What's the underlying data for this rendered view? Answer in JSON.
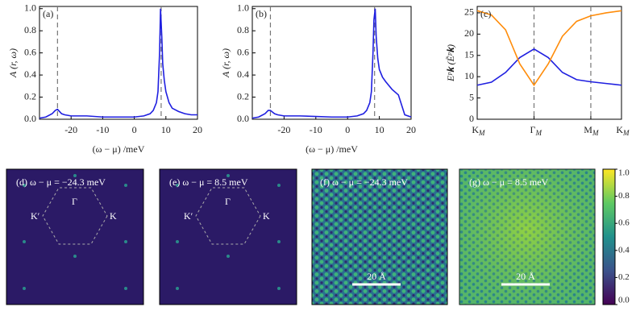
{
  "chart_data": [
    {
      "type": "line",
      "panel": "(a)",
      "xlabel": "(ω − μ) /meV",
      "ylabel": "A (r, ω)",
      "x": [
        -30,
        -28,
        -26,
        -25,
        -24.3,
        -23,
        -22,
        -20,
        -15,
        -10,
        -5,
        0,
        3,
        5,
        6,
        7,
        7.5,
        8,
        8.3,
        8.7,
        9,
        9.5,
        10,
        11,
        12,
        14,
        16,
        18,
        20
      ],
      "series": [
        {
          "color": "#1f1fe0",
          "values": [
            0.01,
            0.02,
            0.05,
            0.08,
            0.09,
            0.05,
            0.04,
            0.03,
            0.03,
            0.02,
            0.02,
            0.02,
            0.03,
            0.05,
            0.08,
            0.15,
            0.25,
            0.6,
            1.0,
            0.75,
            0.5,
            0.35,
            0.25,
            0.15,
            0.1,
            0.07,
            0.05,
            0.04,
            0.04
          ]
        }
      ],
      "xlim": [
        -30,
        20
      ],
      "xticks": [
        -20,
        -10,
        0,
        10,
        20
      ],
      "ylim": [
        0,
        1.02
      ],
      "yticks": [
        {
          "value": 0,
          "label": "0.0"
        },
        0.2,
        0.4,
        0.6,
        0.8,
        {
          "value": 1,
          "label": "1.0"
        }
      ],
      "vlines": [
        -24.3,
        8.5
      ]
    },
    {
      "type": "line",
      "panel": "(b)",
      "xlabel": "(ω − μ) /meV",
      "ylabel": "A (r, ω)",
      "x": [
        -30,
        -28,
        -26,
        -25,
        -24.3,
        -23,
        -22,
        -20,
        -15,
        -10,
        -5,
        0,
        3,
        5,
        6,
        7,
        7.5,
        8,
        8.3,
        8.7,
        9,
        9.5,
        10,
        11,
        12,
        14,
        16,
        18,
        20
      ],
      "series": [
        {
          "color": "#1f1fe0",
          "values": [
            0.01,
            0.02,
            0.05,
            0.08,
            0.08,
            0.05,
            0.04,
            0.03,
            0.03,
            0.025,
            0.02,
            0.02,
            0.03,
            0.05,
            0.08,
            0.15,
            0.25,
            0.6,
            0.9,
            1.0,
            0.75,
            0.55,
            0.45,
            0.38,
            0.34,
            0.27,
            0.22,
            0.04,
            0.02
          ]
        }
      ],
      "xlim": [
        -30,
        20
      ],
      "xticks": [
        -20,
        -10,
        0,
        10,
        20
      ],
      "ylim": [
        0,
        1.02
      ],
      "yticks": [
        {
          "value": 0,
          "label": "0.0"
        },
        0.2,
        0.4,
        0.6,
        0.8,
        {
          "value": 1,
          "label": "1.0"
        }
      ],
      "vlines": [
        -24.3,
        8.5
      ]
    },
    {
      "type": "line",
      "panel": "(c)",
      "ylabel": "Eᵖ𝐤 (Ẽᵖ𝐤)",
      "x": [
        0,
        0.25,
        0.5,
        0.75,
        1,
        1.25,
        1.5,
        1.75,
        2,
        2.27,
        2.54
      ],
      "series": [
        {
          "color": "#1f1fe0",
          "values": [
            8,
            8.7,
            11,
            14.5,
            16.5,
            14.5,
            11,
            9.3,
            8.8,
            8.4,
            8
          ]
        },
        {
          "color": "#ff8c0a",
          "values": [
            25.5,
            24.5,
            21,
            13,
            8,
            13,
            19.5,
            23,
            24.3,
            25,
            25.5
          ]
        }
      ],
      "xlim": [
        0,
        2.54
      ],
      "xticks": [
        {
          "value": 0,
          "label": "K",
          "sub": "M"
        },
        {
          "value": 1,
          "label": "Γ",
          "sub": "M"
        },
        {
          "value": 2,
          "label": "M",
          "sub": "M"
        },
        {
          "value": 2.54,
          "label": "K",
          "sub": "M"
        }
      ],
      "ylim": [
        0,
        26.5
      ],
      "yticks": [
        0,
        5,
        10,
        15,
        20,
        25
      ],
      "vlines": [
        1,
        2
      ]
    }
  ],
  "maps": [
    {
      "title": "(d) ω − μ = −24.3 meV",
      "labels": [
        "K′",
        "Γ",
        "K"
      ]
    },
    {
      "title": "(e) ω − μ = 8.5 meV",
      "labels": [
        "K′",
        "Γ",
        "K"
      ]
    },
    {
      "title": "(f) ω − μ = −24.3 meV",
      "scalebar": "20 Å"
    },
    {
      "title": "(g) ω − μ = 8.5 meV",
      "scalebar": "20 Å"
    }
  ],
  "colorbar": {
    "ylim": [
      0,
      1
    ],
    "yticks": [
      {
        "value": 0,
        "label": "0.0"
      },
      0.2,
      0.4,
      0.6,
      0.8,
      {
        "value": 1,
        "label": "1.0"
      }
    ]
  }
}
